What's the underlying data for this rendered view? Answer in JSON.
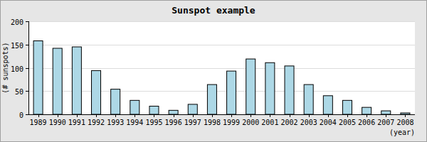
{
  "chart_data": {
    "type": "bar",
    "title": "Sunspot example",
    "x_label": "(year)",
    "y_label": "(# sunspots)",
    "categories": [
      "1989",
      "1990",
      "1991",
      "1992",
      "1993",
      "1994",
      "1995",
      "1996",
      "1997",
      "1998",
      "1999",
      "2000",
      "2001",
      "2002",
      "2003",
      "2004",
      "2005",
      "2006",
      "2007",
      "2008"
    ],
    "values": [
      158,
      142,
      145,
      94,
      54,
      30,
      17.5,
      8.6,
      21.5,
      64,
      93,
      119,
      111,
      104,
      64,
      40,
      30,
      15,
      7.5,
      3
    ],
    "color": "#add8e6",
    "ylim": [
      0,
      200
    ],
    "yticks": [
      0,
      50,
      100,
      150,
      200
    ],
    "grid": true
  }
}
